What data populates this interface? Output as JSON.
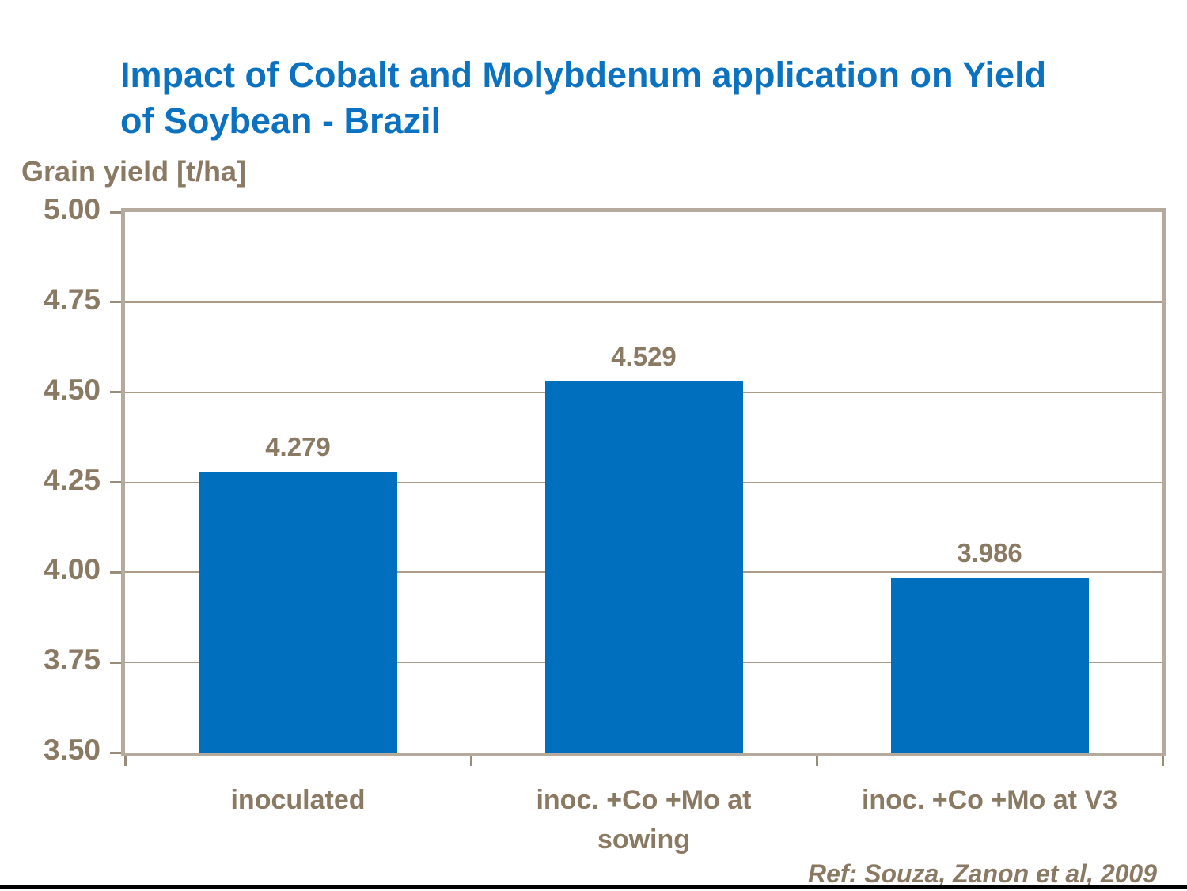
{
  "slide": {
    "title": {
      "line1": "Impact of Cobalt and Molybdenum application on Yield",
      "line2": "of Soybean - Brazil"
    },
    "reference": "Ref: Souza, Zanon et al, 2009"
  },
  "chart_data": {
    "type": "bar",
    "title": "Impact of Cobalt and Molybdenum application on Yield of Soybean - Brazil",
    "xlabel": "",
    "ylabel": "Grain yield [t/ha]",
    "categories": [
      "inoculated",
      "inoc. +Co +Mo at sowing",
      "inoc. +Co +Mo at V3"
    ],
    "category_lines": [
      [
        "inoculated"
      ],
      [
        "inoc. +Co +Mo at",
        "sowing"
      ],
      [
        "inoc. +Co +Mo at V3"
      ]
    ],
    "values": [
      4.279,
      4.529,
      3.986
    ],
    "value_labels": [
      "4.279",
      "4.529",
      "3.986"
    ],
    "ylim": [
      3.5,
      5.0
    ],
    "ytick_step": 0.25,
    "ytick_labels": [
      "5.00",
      "4.75",
      "4.50",
      "4.25",
      "4.00",
      "3.75",
      "3.50"
    ],
    "grid": true,
    "legend": "none",
    "annotations": [
      "Ref: Souza, Zanon et al, 2009"
    ]
  },
  "colors": {
    "title_blue": "#0B72C2",
    "bar_blue": "#0070BE",
    "text_brown": "#8A7A63",
    "frame": "#B4AA9D",
    "gridline": "#A99B88",
    "tick": "#9A8C7A",
    "bottom_bar": "#000000",
    "background": "#FFFFFF"
  }
}
